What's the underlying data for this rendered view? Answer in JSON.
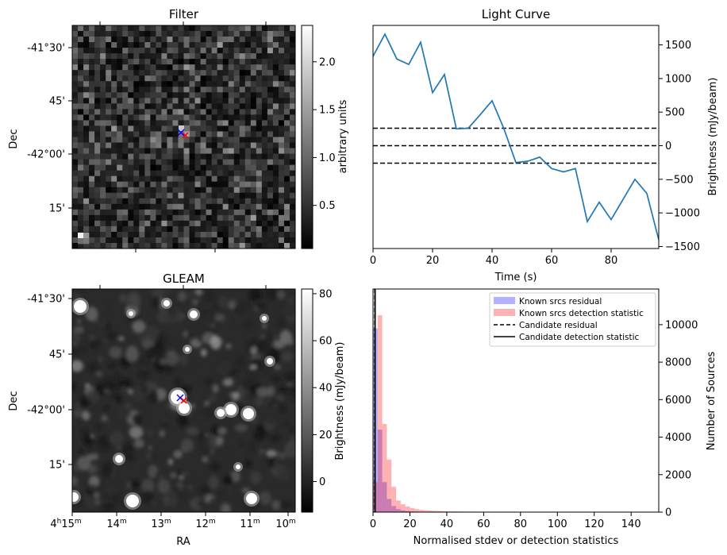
{
  "panels": {
    "filter": {
      "title": "Filter",
      "ylabel": "Dec",
      "dec_ticks": [
        "-41°30'",
        "45'",
        "-42°00'",
        "15'"
      ],
      "colorbar": {
        "label": "arbitrary units",
        "ticks": [
          0.5,
          1.0,
          1.5,
          2.0
        ],
        "tick_labels": [
          "0.5",
          "1.0",
          "1.5",
          "2.0"
        ],
        "range": [
          0.05,
          2.38
        ],
        "colormap": "gray"
      }
    },
    "gleam": {
      "title": "GLEAM",
      "ylabel": "Dec",
      "xlabel": "RA",
      "dec_ticks": [
        "-41°30'",
        "45'",
        "-42°00'",
        "15'"
      ],
      "ra_ticks": [
        {
          "main": "4",
          "sup1": "h",
          "num": "15",
          "sup2": "m"
        },
        {
          "main": "",
          "sup1": "",
          "num": "14",
          "sup2": "m"
        },
        {
          "main": "",
          "sup1": "",
          "num": "13",
          "sup2": "m"
        },
        {
          "main": "",
          "sup1": "",
          "num": "12",
          "sup2": "m"
        },
        {
          "main": "",
          "sup1": "",
          "num": "11",
          "sup2": "m"
        },
        {
          "main": "",
          "sup1": "",
          "num": "10",
          "sup2": "m"
        }
      ],
      "colorbar": {
        "label": "Brightness (mJy/beam)",
        "ticks": [
          0,
          20,
          40,
          60,
          80
        ],
        "tick_labels": [
          "0",
          "20",
          "40",
          "60",
          "80"
        ],
        "range": [
          -13,
          82
        ],
        "colormap": "gray"
      }
    },
    "markers": {
      "source_color": "#0000ff",
      "candidate_color": "#ff0000",
      "symbol": "x"
    }
  },
  "chart_data": [
    {
      "type": "line",
      "title": "Light Curve",
      "xlabel": "Time (s)",
      "ylabel": "Brightness (mJy/beam)",
      "xlim": [
        0,
        96
      ],
      "ylim": [
        -1530,
        1790
      ],
      "xticks": [
        0,
        20,
        40,
        60,
        80
      ],
      "yticks": [
        -1500,
        -1000,
        -500,
        0,
        500,
        1000,
        1500
      ],
      "x": [
        0,
        4,
        8,
        12,
        16,
        20,
        24,
        28,
        32,
        36,
        40,
        44,
        48,
        52,
        56,
        60,
        64,
        68,
        72,
        76,
        80,
        84,
        88,
        92,
        96
      ],
      "y": [
        1330,
        1660,
        1290,
        1210,
        1540,
        790,
        1060,
        250,
        260,
        460,
        670,
        250,
        -250,
        -230,
        -170,
        -340,
        -390,
        -340,
        -1130,
        -840,
        -1100,
        -800,
        -500,
        -710,
        -1400
      ],
      "color": "#1f77b4",
      "hlines": [
        260,
        0,
        -260
      ],
      "hline_style": "dashed"
    },
    {
      "type": "bar",
      "xlabel": "Normalised stdev or detection statistics",
      "ylabel": "Number of Sources",
      "xlim": [
        0,
        155
      ],
      "ylim": [
        0,
        11900
      ],
      "xticks": [
        0,
        20,
        40,
        60,
        80,
        100,
        120,
        140
      ],
      "yticks": [
        0,
        2000,
        4000,
        6000,
        8000,
        10000
      ],
      "bin_width": 2.5,
      "series": [
        {
          "name": "Known srcs residual",
          "color": "#0000ff",
          "alpha": 0.3,
          "values": [
            9800,
            4400,
            1600,
            700,
            320,
            160,
            90,
            60,
            40,
            30,
            20,
            15,
            10,
            8
          ]
        },
        {
          "name": "Known srcs detection statistic",
          "color": "#ff0000",
          "alpha": 0.3,
          "values": [
            1600,
            10500,
            4700,
            2800,
            1350,
            620,
            420,
            300,
            220,
            160,
            120,
            100,
            85,
            70,
            60,
            50,
            45,
            40,
            35,
            30,
            28,
            26,
            24,
            22,
            20,
            18,
            16,
            15,
            14,
            13,
            12,
            11,
            10,
            10,
            9,
            9,
            8,
            8,
            7,
            7,
            6,
            6,
            6,
            5,
            5,
            5,
            5,
            4,
            4,
            4,
            4,
            4,
            3,
            3,
            3,
            3,
            3,
            3,
            3,
            3
          ]
        }
      ],
      "vlines": [
        {
          "name": "Candidate residual",
          "x": 1.0,
          "style": "dashed",
          "color": "#000000"
        },
        {
          "name": "Candidate detection statistic",
          "x": 1.1,
          "style": "solid",
          "color": "#000000"
        }
      ],
      "legend": "top-right"
    }
  ]
}
